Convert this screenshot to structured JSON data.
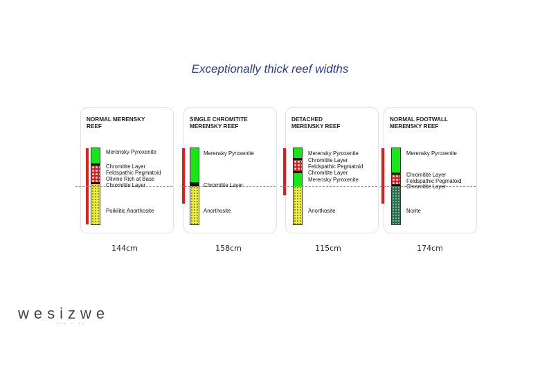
{
  "title": "Exceptionally thick reef widths",
  "panels": [
    {
      "title_lines": [
        "NORMAL MERENSKY",
        "REEF"
      ],
      "layers": [
        "Merensky Pyroxenite",
        "Chromitite Layer",
        "Feldspathic Pegmatoid",
        "Olivine Rich at Base",
        "Chromitite Layer",
        "Poikilitic Anorthosite"
      ],
      "width": "144cm"
    },
    {
      "title_lines": [
        "SINGLE CHROMITITE",
        "MERENSKY REEF"
      ],
      "layers": [
        "Merensky Pyroxenite",
        "Chromitite Layer",
        "Anorthosite"
      ],
      "width": "158cm"
    },
    {
      "title_lines": [
        "DETACHED",
        "MERENSKY REEF"
      ],
      "layers": [
        "Merensky Pyroxenite",
        "Chromitite Layer",
        "Feldspathic Pegmatoid",
        "Chromitite Layer",
        "Merensky Pyroxenite",
        "Anorthosite"
      ],
      "width": "115cm"
    },
    {
      "title_lines": [
        "NORMAL FOOTWALL",
        "MERENSKY REEF"
      ],
      "layers": [
        "Merensky Pyroxenite",
        "Chromitite Layer",
        "Feldspathic Pegmatoid",
        "Chromitite Layer",
        "Norite"
      ],
      "width": "174cm"
    }
  ],
  "logo": {
    "text": "wesizwe"
  },
  "colors": {
    "pyroxenite": "#19e619",
    "chromitite": "#111111",
    "pegmatoid": "#c62828",
    "anorthosite": "#ecec4a",
    "norite": "#2e6f4e",
    "reef_bar": "#e41b1b",
    "title": "#2b3a8a"
  }
}
